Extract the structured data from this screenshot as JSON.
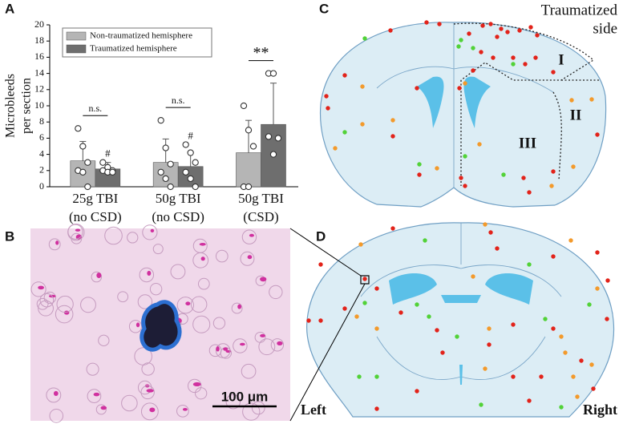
{
  "panels": {
    "a": "A",
    "b": "B",
    "c": "C",
    "d": "D"
  },
  "chart_data": {
    "type": "bar",
    "ylabel": [
      "Microbleeds",
      "per section"
    ],
    "categories": [
      "25g TBI",
      "50g TBI",
      "50g TBI"
    ],
    "subcategories": [
      "(no CSD)",
      "(no CSD)",
      "(CSD)"
    ],
    "series": [
      {
        "name": "Non-traumatized hemisphere",
        "color": "#b5b5b5",
        "values": [
          3.2,
          3.0,
          4.2
        ],
        "errors": [
          2.4,
          2.9,
          4.0
        ],
        "points": [
          [
            7.2,
            5.0,
            3.0,
            2.0,
            1.8,
            0
          ],
          [
            8.2,
            4.8,
            2.8,
            1.8,
            1.0,
            0
          ],
          [
            10,
            7,
            5,
            0,
            0
          ]
        ]
      },
      {
        "name": "Traumatized hemisphere",
        "color": "#6e6e6e",
        "values": [
          2.2,
          2.5,
          7.7
        ],
        "errors": [
          0.8,
          1.8,
          5.1
        ],
        "points": [
          [
            3.0,
            2.4,
            2.0,
            2.0,
            1.8,
            1.8
          ],
          [
            5.2,
            4.2,
            3.0,
            1.8,
            1.0,
            0
          ],
          [
            14,
            14,
            6,
            6.2,
            4
          ]
        ]
      }
    ],
    "significance": [
      "n.s.",
      "n.s.",
      "**"
    ],
    "markers": [
      "#",
      "#",
      null
    ],
    "ylim": [
      0,
      20
    ],
    "yticks": [
      0,
      2,
      4,
      6,
      8,
      10,
      12,
      14,
      16,
      18,
      20
    ]
  },
  "panel_b": {
    "scale_bar": "100 μm"
  },
  "panel_c": {
    "side_label": [
      "Traumatized",
      "side"
    ],
    "regions": [
      "I",
      "II",
      "III"
    ]
  },
  "panel_d": {
    "left": "Left",
    "right": "Right"
  }
}
